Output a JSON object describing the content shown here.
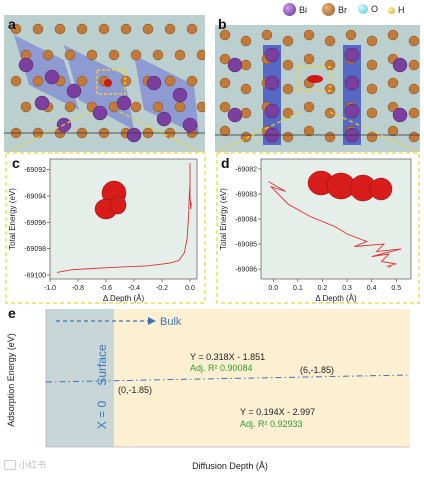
{
  "legend": [
    {
      "label": "Bi",
      "color": "#7b3fa0"
    },
    {
      "label": "Br",
      "color": "#b86f2c"
    },
    {
      "label": "O",
      "color": "#7fd9e3"
    },
    {
      "label": "H",
      "color": "#f0c93a"
    }
  ],
  "panels": {
    "a": "a",
    "b": "b",
    "c": "c",
    "d": "d",
    "e": "e"
  },
  "chart_data": [
    {
      "type": "line",
      "panel": "c",
      "xlabel": "Δ Depth (Å)",
      "ylabel": "Total Energy (eV)",
      "xticks": [
        "-1.0",
        "-0.8",
        "-0.6",
        "-0.4",
        "-0.2",
        "0.0"
      ],
      "yticks": [
        "-69092",
        "-69094",
        "-69096",
        "-69098",
        "-69100"
      ],
      "xlim": [
        -1.0,
        0.05
      ],
      "ylim": [
        -69100.3,
        -69091.2
      ],
      "color": "#e03030",
      "x": [
        -0.95,
        -0.85,
        -0.7,
        -0.5,
        -0.3,
        -0.15,
        -0.08,
        -0.04,
        -0.02,
        -0.01,
        -0.005,
        0.0,
        0.0,
        0.0,
        0.005,
        0.01
      ],
      "y": [
        -69099.8,
        -69099.6,
        -69099.5,
        -69099.4,
        -69099.3,
        -69099.1,
        -69098.9,
        -69098.3,
        -69097.2,
        -69095.5,
        -69094.0,
        -69093.0,
        -69091.5,
        -69094.0,
        -69095.0,
        -69094.5
      ]
    },
    {
      "type": "line",
      "panel": "d",
      "xlabel": "Δ Depth (Å)",
      "ylabel": "Total Energy (eV)",
      "xticks": [
        "0.0",
        "0.1",
        "0.2",
        "0.3",
        "0.4",
        "0.5"
      ],
      "yticks": [
        "-69082",
        "-69083",
        "-69084",
        "-69085",
        "-69086"
      ],
      "xlim": [
        -0.05,
        0.56
      ],
      "ylim": [
        -69086.4,
        -69081.6
      ],
      "color": "#e03030",
      "x": [
        -0.02,
        0.05,
        -0.01,
        0.06,
        0.15,
        0.25,
        0.3,
        0.38,
        0.33,
        0.45,
        0.42,
        0.52,
        0.4,
        0.47,
        0.44,
        0.5,
        0.46,
        0.48,
        0.47
      ],
      "y": [
        -69082.5,
        -69082.9,
        -69082.7,
        -69083.4,
        -69083.9,
        -69084.3,
        -69084.6,
        -69084.9,
        -69085.1,
        -69085.0,
        -69085.3,
        -69085.2,
        -69085.5,
        -69085.4,
        -69085.7,
        -69085.8,
        -69085.9,
        -69085.85,
        -69085.95
      ]
    },
    {
      "type": "line",
      "panel": "e",
      "xlabel": "Diffusion Depth (Å)",
      "ylabel": "Adsorption Energy (eV)",
      "regions": {
        "left": "X = 0",
        "upper": "Surface",
        "arrow": "Bulk"
      },
      "series": [
        {
          "equation": "Y = 0.318X - 1.851",
          "r2": "Adj. R² 0.90084",
          "slope": 0.318,
          "intercept": -1.851
        },
        {
          "equation": "Y = 0.194X - 2.997",
          "r2": "Adj. R² 0.92933",
          "slope": 0.194,
          "intercept": -2.997
        }
      ],
      "points": [
        {
          "label": "(0,-1.85)",
          "x": 0,
          "y": -1.85
        },
        {
          "label": "(6,-1.85)",
          "x": 6,
          "y": -1.85
        }
      ]
    }
  ],
  "watermark": "小红书"
}
